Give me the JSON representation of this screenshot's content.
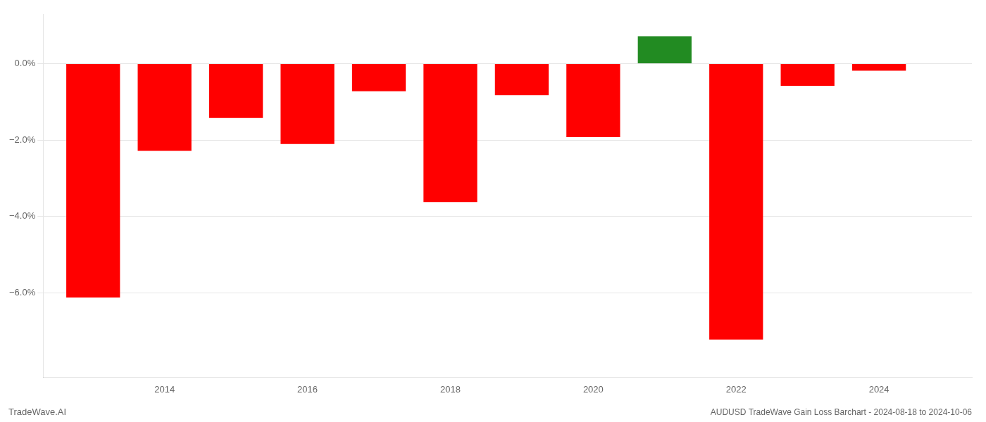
{
  "chart_data": {
    "type": "bar",
    "title": "AUDUSD TradeWave Gain Loss Barchart - 2024-08-18 to 2024-10-06",
    "annotations": [
      "TradeWave.AI"
    ],
    "x": [
      2013,
      2014,
      2015,
      2016,
      2017,
      2018,
      2019,
      2020,
      2021,
      2022,
      2023,
      2024
    ],
    "values": [
      -6.12,
      -2.28,
      -1.42,
      -2.1,
      -0.72,
      -3.62,
      -0.82,
      -1.92,
      0.72,
      -7.22,
      -0.58,
      -0.18
    ],
    "colors": [
      "#ff0000",
      "#ff0000",
      "#ff0000",
      "#ff0000",
      "#ff0000",
      "#ff0000",
      "#ff0000",
      "#ff0000",
      "#228B22",
      "#ff0000",
      "#ff0000",
      "#ff0000"
    ],
    "xlim": [
      2012.3,
      2025.3
    ],
    "xticks": [
      2014,
      2016,
      2018,
      2020,
      2022,
      2024
    ],
    "ylim": [
      -8.2,
      1.3
    ],
    "yticks": [
      {
        "value": 0.0,
        "label": "0.0%"
      },
      {
        "value": -2.0,
        "label": "−2.0%"
      },
      {
        "value": -4.0,
        "label": "−4.0%"
      },
      {
        "value": -6.0,
        "label": "−6.0%"
      }
    ],
    "grid": true
  }
}
